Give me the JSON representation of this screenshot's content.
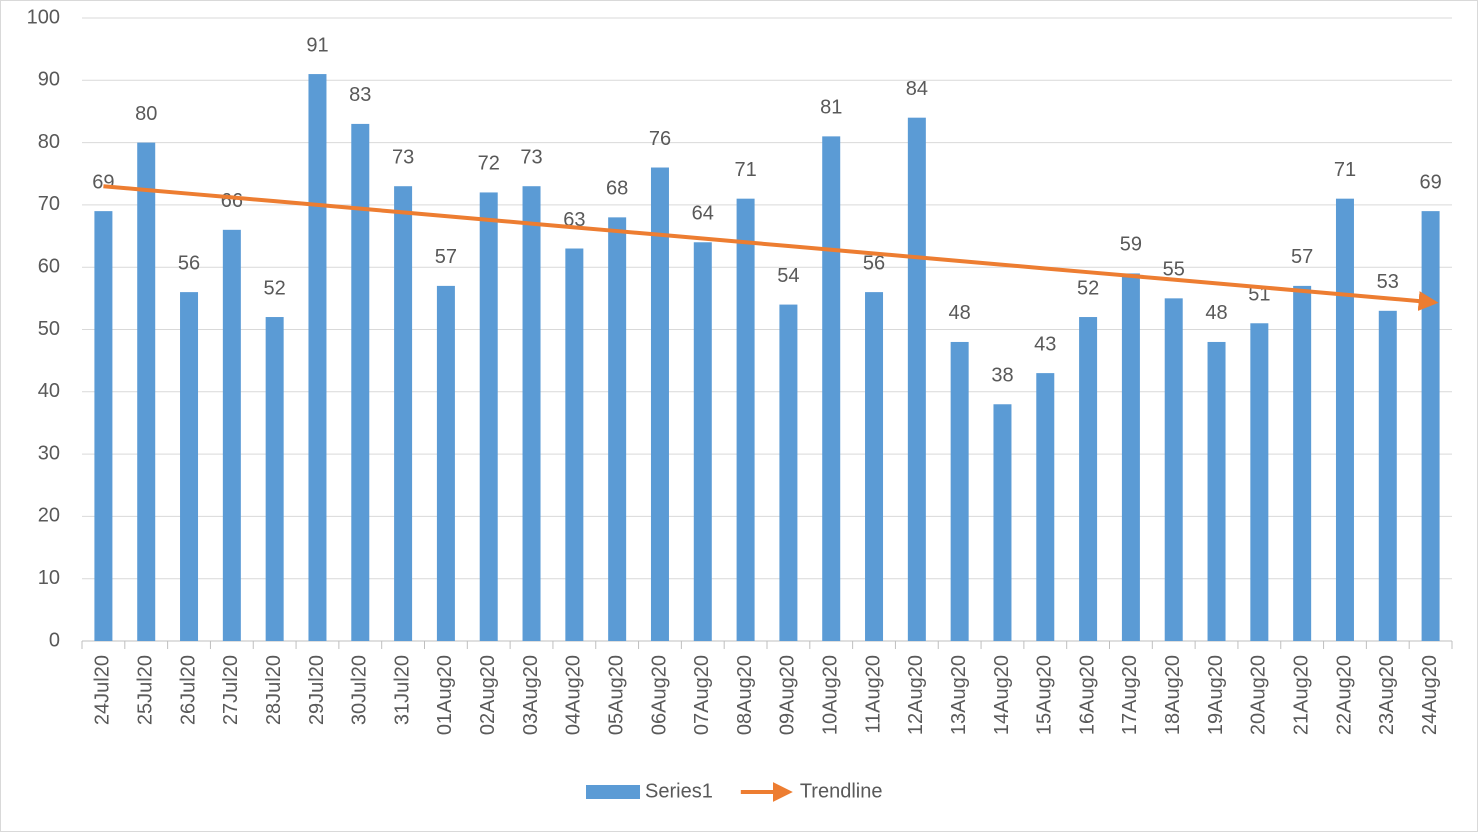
{
  "chart_data": {
    "type": "bar",
    "categories": [
      "24Jul20",
      "25Jul20",
      "26Jul20",
      "27Jul20",
      "28Jul20",
      "29Jul20",
      "30Jul20",
      "31Jul20",
      "01Aug20",
      "02Aug20",
      "03Aug20",
      "04Aug20",
      "05Aug20",
      "06Aug20",
      "07Aug20",
      "08Aug20",
      "09Aug20",
      "10Aug20",
      "11Aug20",
      "12Aug20",
      "13Aug20",
      "14Aug20",
      "15Aug20",
      "16Aug20",
      "17Aug20",
      "18Aug20",
      "19Aug20",
      "20Aug20",
      "21Aug20",
      "22Aug20",
      "23Aug20",
      "24Aug20"
    ],
    "series": [
      {
        "name": "Series1",
        "type": "bar",
        "color": "#5b9bd5",
        "data_labels": true,
        "values": [
          69,
          80,
          56,
          66,
          52,
          91,
          83,
          73,
          57,
          72,
          73,
          63,
          68,
          76,
          64,
          71,
          54,
          81,
          56,
          84,
          48,
          38,
          43,
          52,
          59,
          55,
          48,
          51,
          57,
          71,
          53,
          69
        ]
      },
      {
        "name": "Trendline",
        "type": "line",
        "color": "#ed7d31",
        "arrow": true,
        "values": [
          73,
          72.4,
          71.8,
          71.2,
          70.6,
          70,
          69.4,
          68.8,
          68.2,
          67.6,
          67,
          66.4,
          65.8,
          65.2,
          64.6,
          64,
          63.4,
          62.8,
          62.2,
          61.6,
          61,
          60.4,
          59.8,
          59.2,
          58.6,
          58,
          57.4,
          56.8,
          56.2,
          55.6,
          55,
          54.4
        ]
      }
    ],
    "ylim": [
      0,
      100
    ],
    "yticks": [
      0,
      10,
      20,
      30,
      40,
      50,
      60,
      70,
      80,
      90,
      100
    ],
    "grid": true,
    "legend": "bottom"
  }
}
